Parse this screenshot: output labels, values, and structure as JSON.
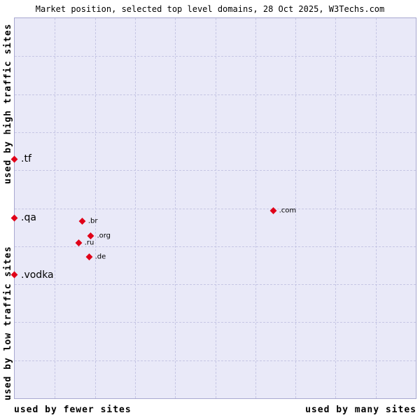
{
  "title": "Market position, selected top level domains, 28 Oct 2025, W3Techs.com",
  "axes": {
    "left_top": "used by high traffic sites",
    "left_bottom": "used by low traffic sites",
    "bottom_left": "used by fewer sites",
    "bottom_right": "used by many sites"
  },
  "colors": {
    "plot_bg": "#e9e9f8",
    "plot_border": "#a8a8d0",
    "grid": "#c6c6e4",
    "point": "#e00018",
    "text": "#000000"
  },
  "chart_data": {
    "type": "scatter",
    "title": "Market position, selected top level domains, 28 Oct 2025, W3Techs.com",
    "x_axis": {
      "label_left": "used by fewer sites",
      "label_right": "used by many sites",
      "scale": "qualitative"
    },
    "y_axis": {
      "label_top": "used by high traffic sites",
      "label_bottom": "used by low traffic sites",
      "scale": "qualitative"
    },
    "grid": "dashed",
    "grid_divisions": 10,
    "marker": "diamond",
    "points": [
      {
        "label": ".tf",
        "x_pct": 0.0,
        "y_pct": 37.1,
        "large": true
      },
      {
        "label": ".qa",
        "x_pct": 0.0,
        "y_pct": 52.5,
        "large": true
      },
      {
        "label": ".vodka",
        "x_pct": 0.0,
        "y_pct": 67.5,
        "large": true
      },
      {
        "label": ".br",
        "x_pct": 16.9,
        "y_pct": 53.4,
        "large": false
      },
      {
        "label": ".org",
        "x_pct": 19.1,
        "y_pct": 57.2,
        "large": false
      },
      {
        "label": ".ru",
        "x_pct": 16.0,
        "y_pct": 59.1,
        "large": false
      },
      {
        "label": ".de",
        "x_pct": 18.6,
        "y_pct": 62.8,
        "large": false
      },
      {
        "label": ".com",
        "x_pct": 64.5,
        "y_pct": 50.6,
        "large": false
      }
    ]
  }
}
